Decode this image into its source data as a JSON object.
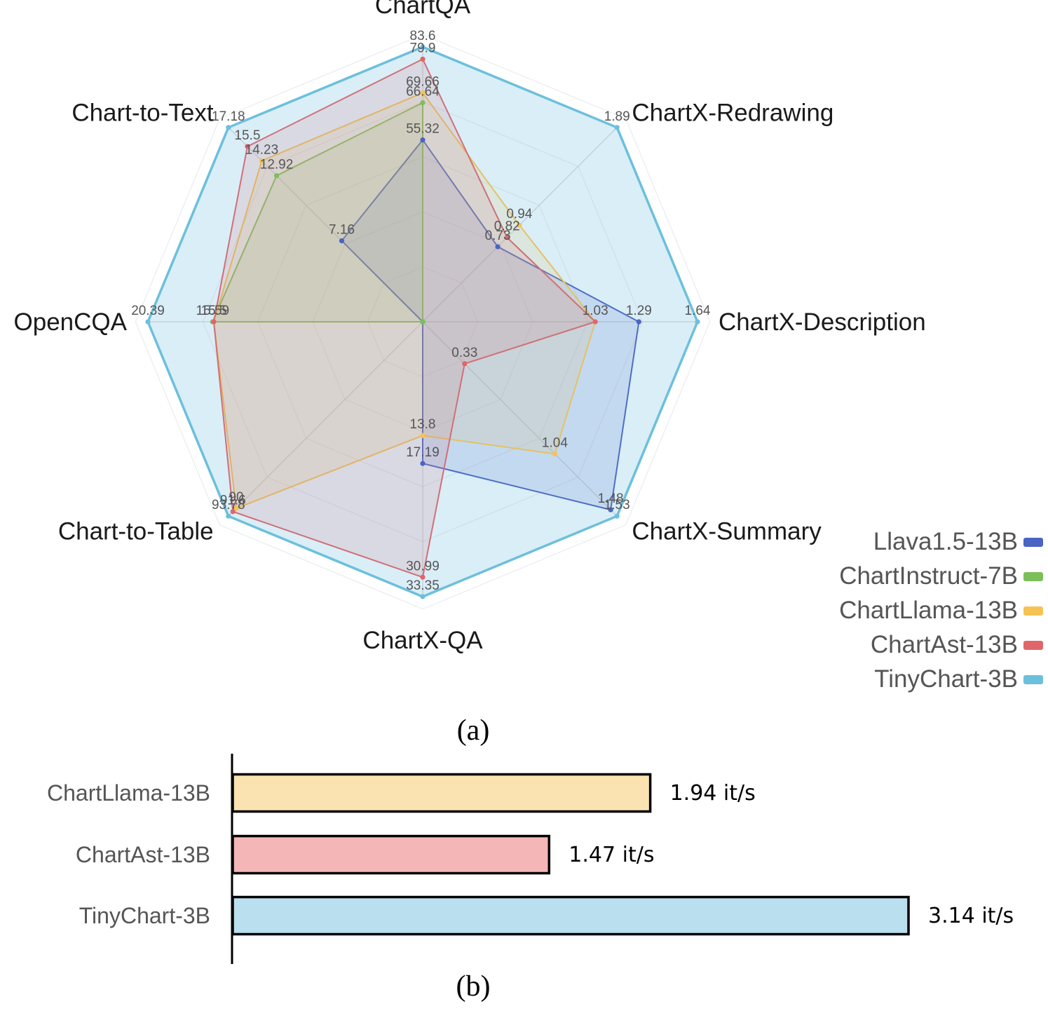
{
  "chart_data": [
    {
      "type": "radar",
      "caption": "(a)",
      "axes": [
        "ChartQA",
        "ChartX-Redrawing",
        "ChartX-Description",
        "ChartX-Summary",
        "ChartX-QA",
        "Chart-to-Table",
        "OpenCQA",
        "Chart-to-Text"
      ],
      "max": [
        83.6,
        1.89,
        1.64,
        1.53,
        33.35,
        93.78,
        20.39,
        17.18
      ],
      "series": [
        {
          "name": "Llava1.5-13B",
          "color": "#4a64c4",
          "values": [
            55.32,
            0.73,
            1.29,
            1.48,
            17.19,
            null,
            null,
            7.16
          ],
          "labels": [
            "55.32",
            "0.73",
            "1.29",
            "1.48",
            "17.19",
            "",
            "",
            "7.16"
          ]
        },
        {
          "name": "ChartInstruct-7B",
          "color": "#7cbf5a",
          "values": [
            66.64,
            null,
            null,
            null,
            null,
            null,
            15.59,
            12.92
          ],
          "labels": [
            "66.64",
            "",
            "",
            "",
            "",
            "",
            "15.59",
            "12.92"
          ]
        },
        {
          "name": "ChartLlama-13B",
          "color": "#f5c354",
          "values": [
            69.66,
            0.94,
            1.03,
            1.04,
            13.8,
            90,
            15.5,
            14.23
          ],
          "labels": [
            "69.66",
            "0.94",
            "1.03",
            "1.04",
            "13.8",
            "90",
            "15.5",
            "14.23"
          ]
        },
        {
          "name": "ChartAst-13B",
          "color": "#e0656a",
          "values": [
            79.9,
            0.82,
            1.03,
            0.33,
            30.99,
            91.6,
            15.5,
            15.5
          ],
          "labels": [
            "79.9",
            "0.82",
            "",
            "0.33",
            "30.99",
            "91.6",
            "",
            "15.5"
          ]
        },
        {
          "name": "TinyChart-3B",
          "color": "#6cc0dc",
          "values": [
            83.6,
            1.89,
            1.64,
            1.53,
            33.35,
            93.78,
            20.39,
            17.18
          ],
          "labels": [
            "83.6",
            "1.89",
            "1.64",
            "1.53",
            "33.35",
            "93.78",
            "20.39",
            "17.18"
          ]
        }
      ]
    },
    {
      "type": "bar",
      "orientation": "horizontal",
      "caption": "(b)",
      "categories": [
        "ChartLlama-13B",
        "ChartAst-13B",
        "TinyChart-3B"
      ],
      "values": [
        1.94,
        1.47,
        3.14
      ],
      "value_labels": [
        "1.94 it/s",
        "1.47 it/s",
        "3.14 it/s"
      ],
      "colors": [
        "#fae3b0",
        "#f4b6b7",
        "#badfef"
      ]
    }
  ]
}
